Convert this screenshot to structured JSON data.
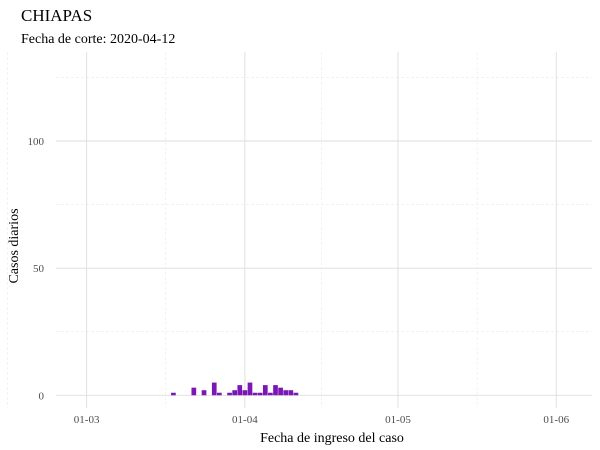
{
  "chart_data": {
    "type": "bar",
    "title": "CHIAPAS",
    "subtitle": "Fecha de corte: 2020-04-12",
    "xlabel": "Fecha de ingreso del caso",
    "ylabel": "Casos diarios",
    "x_ticks": [
      "01-03",
      "01-04",
      "01-05",
      "01-06"
    ],
    "y_ticks": [
      0,
      50,
      100
    ],
    "xlim": [
      "2020-02-24",
      "2020-06-08"
    ],
    "ylim": [
      -5,
      135
    ],
    "grid": true,
    "legend": "none",
    "bar_color": "#7b18b5",
    "series": [
      {
        "dates": [
          "2020-03-18",
          "2020-03-22",
          "2020-03-24",
          "2020-03-26",
          "2020-03-27",
          "2020-03-29",
          "2020-03-30",
          "2020-03-31",
          "2020-04-01",
          "2020-04-02",
          "2020-04-03",
          "2020-04-04",
          "2020-04-05",
          "2020-04-06",
          "2020-04-07",
          "2020-04-08",
          "2020-04-09",
          "2020-04-10",
          "2020-04-11"
        ],
        "values": [
          1,
          3,
          2,
          5,
          1,
          1,
          2,
          4,
          2,
          5,
          1,
          1,
          4,
          1,
          4,
          3,
          2,
          2,
          1
        ]
      }
    ]
  }
}
